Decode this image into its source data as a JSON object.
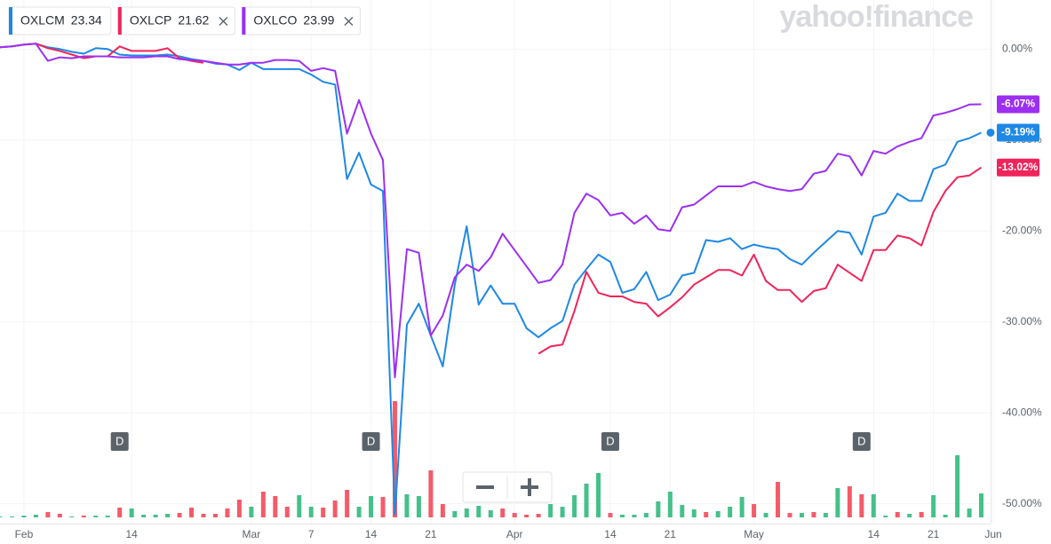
{
  "chart_data": {
    "type": "line",
    "watermark": "yahoo!finance",
    "xlim": [
      0,
      83
    ],
    "xticks": [
      {
        "value": 2,
        "label": "Feb"
      },
      {
        "value": 11,
        "label": "14"
      },
      {
        "value": 21,
        "label": "Mar"
      },
      {
        "value": 26,
        "label": "7"
      },
      {
        "value": 31,
        "label": "14"
      },
      {
        "value": 36,
        "label": "21"
      },
      {
        "value": 43,
        "label": "Apr"
      },
      {
        "value": 51,
        "label": "14"
      },
      {
        "value": 56,
        "label": "21"
      },
      {
        "value": 63,
        "label": "May"
      },
      {
        "value": 73,
        "label": "14"
      },
      {
        "value": 78,
        "label": "21"
      },
      {
        "value": 83,
        "label": "Jun"
      }
    ],
    "ylim": [
      -51.5,
      5.4
    ],
    "yticks": [
      {
        "value": 0,
        "label": "0.00%"
      },
      {
        "value": -10,
        "label": "-10.00%"
      },
      {
        "value": -20,
        "label": "-20.00%"
      },
      {
        "value": -30,
        "label": "-30.00%"
      },
      {
        "value": -40,
        "label": "-40.00%"
      },
      {
        "value": -50,
        "label": "-50.00%"
      }
    ],
    "grid": true,
    "series": [
      {
        "name": "OXLCM",
        "price": "23.34",
        "color": "#1e88e5",
        "closable": false,
        "end_label": "-9.19%",
        "values": [
          0.2,
          0.3,
          0.5,
          0.6,
          0.2,
          0,
          -0.3,
          -0.5,
          0.1,
          0,
          -0.6,
          -0.7,
          -0.7,
          -0.7,
          -0.6,
          -0.8,
          -1.1,
          -1.3,
          -1.6,
          -1.7,
          -2.3,
          -1.5,
          -2.2,
          -2.2,
          -2.2,
          -2.2,
          -2.8,
          -3.6,
          -3.9,
          -14.3,
          -11.4,
          -14.9,
          -15.6,
          -51.2,
          -30.3,
          -28,
          -31.5,
          -34.9,
          -25.9,
          -19.5,
          -28.1,
          -26,
          -28,
          -28,
          -30.7,
          -31.7,
          -30.7,
          -29.9,
          -25.9,
          -24.2,
          -22.6,
          -23.4,
          -26.8,
          -26.4,
          -24.5,
          -27.6,
          -27,
          -24.9,
          -24.6,
          -21,
          -21.2,
          -20.8,
          -22,
          -21.5,
          -21.8,
          -22,
          -23.1,
          -23.7,
          -22.4,
          -21.2,
          -20,
          -20.2,
          -22.6,
          -18.4,
          -18,
          -15.9,
          -16.7,
          -16.7,
          -13.2,
          -12.7,
          -10.2,
          -9.8,
          -9.19
        ]
      },
      {
        "name": "OXLCP",
        "price": "21.62",
        "color": "#f0245a",
        "closable": true,
        "end_label": "-13.02%",
        "values": [
          0.2,
          0.3,
          0.5,
          0.6,
          0.1,
          -0.2,
          -0.6,
          -1.0,
          -0.8,
          -0.8,
          0.3,
          -0.2,
          -0.2,
          -0.2,
          0.1,
          -1.0,
          -1.3,
          -1.5,
          null,
          null,
          null,
          null,
          null,
          null,
          null,
          null,
          null,
          null,
          null,
          null,
          null,
          null,
          null,
          null,
          null,
          null,
          null,
          null,
          null,
          null,
          null,
          null,
          null,
          null,
          null,
          -33.5,
          -32.7,
          -32.5,
          -28.8,
          -24.5,
          -26.8,
          -27.2,
          -27.2,
          -27.8,
          -28,
          -29.4,
          -28.4,
          -27.3,
          -25.9,
          -25.1,
          -24.3,
          -24.3,
          -24.9,
          -22.6,
          -25.5,
          -26.5,
          -26.5,
          -27.8,
          -26.6,
          -26.3,
          -23.7,
          -24.6,
          -25.5,
          -22.1,
          -22.1,
          -20.5,
          -20.8,
          -21.6,
          -17.9,
          -15.6,
          -14.1,
          -13.9,
          -13.02
        ]
      },
      {
        "name": "OXLCO",
        "price": "23.99",
        "color": "#9c2ff2",
        "closable": true,
        "end_label": "-6.07%",
        "values": [
          0.2,
          0.3,
          0.5,
          0.6,
          -1.3,
          -0.9,
          -1.0,
          -0.8,
          -0.8,
          -0.8,
          -0.9,
          -0.9,
          -0.9,
          -0.8,
          -0.8,
          -1.1,
          -1.2,
          -1.3,
          -1.5,
          -1.7,
          -1.7,
          -1.5,
          -1.5,
          -1.2,
          -1.2,
          -1.3,
          -2.4,
          -2.1,
          -2.4,
          -9.3,
          -5.6,
          -9.3,
          -12.2,
          -36.1,
          -22,
          -22.4,
          -31.5,
          -29.3,
          -25.1,
          -23.7,
          -24.4,
          -22.9,
          -20.3,
          -22.1,
          -23.9,
          -25.7,
          -25.4,
          -23.7,
          -18,
          -15.9,
          -16.6,
          -18.3,
          -18,
          -19.2,
          -18.3,
          -19.8,
          -20,
          -17.4,
          -17.1,
          -16.1,
          -15.1,
          -15.1,
          -15.1,
          -14.6,
          -15.1,
          -15.4,
          -15.6,
          -15.4,
          -13.7,
          -13.4,
          -11.5,
          -11.8,
          -13.9,
          -11.2,
          -11.5,
          -10.7,
          -10.2,
          -9.8,
          -7.3,
          -7,
          -6.6,
          -6.1,
          -6.07
        ]
      }
    ],
    "volume": {
      "values": [
        1,
        1,
        2,
        3,
        6,
        4,
        1,
        2,
        2,
        2,
        11,
        10,
        3,
        3,
        4,
        5,
        11,
        4,
        4,
        10,
        20,
        12,
        29,
        24,
        12,
        25,
        12,
        11,
        19,
        31,
        12,
        24,
        23,
        131,
        26,
        24,
        53,
        15,
        7,
        10,
        13,
        8,
        10,
        5,
        3,
        4,
        15,
        12,
        25,
        38,
        50,
        5,
        3,
        3,
        5,
        18,
        29,
        14,
        9,
        6,
        7,
        12,
        23,
        15,
        5,
        40,
        5,
        5,
        6,
        5,
        33,
        35,
        26,
        26,
        2,
        6,
        4,
        6,
        25,
        3,
        70,
        10,
        27
      ],
      "colors": [
        "#45c08a",
        "#45c08a",
        "#45c08a",
        "#45c08a",
        "#f45b69",
        "#f45b69",
        "#45c08a",
        "#f45b69",
        "#45c08a",
        "#45c08a",
        "#f45b69",
        "#45c08a",
        "#45c08a",
        "#45c08a",
        "#45c08a",
        "#f45b69",
        "#f45b69",
        "#f45b69",
        "#f45b69",
        "#f45b69",
        "#f45b69",
        "#45c08a",
        "#f45b69",
        "#f45b69",
        "#f45b69",
        "#45c08a",
        "#45c08a",
        "#f45b69",
        "#f45b69",
        "#f45b69",
        "#45c08a",
        "#45c08a",
        "#f45b69",
        "#f45b69",
        "#45c08a",
        "#45c08a",
        "#f45b69",
        "#f45b69",
        "#45c08a",
        "#45c08a",
        "#45c08a",
        "#45c08a",
        "#f45b69",
        "#f45b69",
        "#f45b69",
        "#f45b69",
        "#45c08a",
        "#45c08a",
        "#45c08a",
        "#45c08a",
        "#45c08a",
        "#f45b69",
        "#45c08a",
        "#45c08a",
        "#45c08a",
        "#45c08a",
        "#45c08a",
        "#45c08a",
        "#45c08a",
        "#f45b69",
        "#45c08a",
        "#45c08a",
        "#45c08a",
        "#f45b69",
        "#45c08a",
        "#f45b69",
        "#f45b69",
        "#45c08a",
        "#f45b69",
        "#45c08a",
        "#45c08a",
        "#f45b69",
        "#f45b69",
        "#45c08a",
        "#45c08a",
        "#f45b69",
        "#45c08a",
        "#f45b69",
        "#45c08a",
        "#45c08a",
        "#45c08a",
        "#45c08a",
        "#45c08a"
      ]
    },
    "events": [
      {
        "label": "D",
        "x": 10
      },
      {
        "label": "D",
        "x": 31
      },
      {
        "label": "D",
        "x": 51
      },
      {
        "label": "D",
        "x": 72
      }
    ]
  }
}
